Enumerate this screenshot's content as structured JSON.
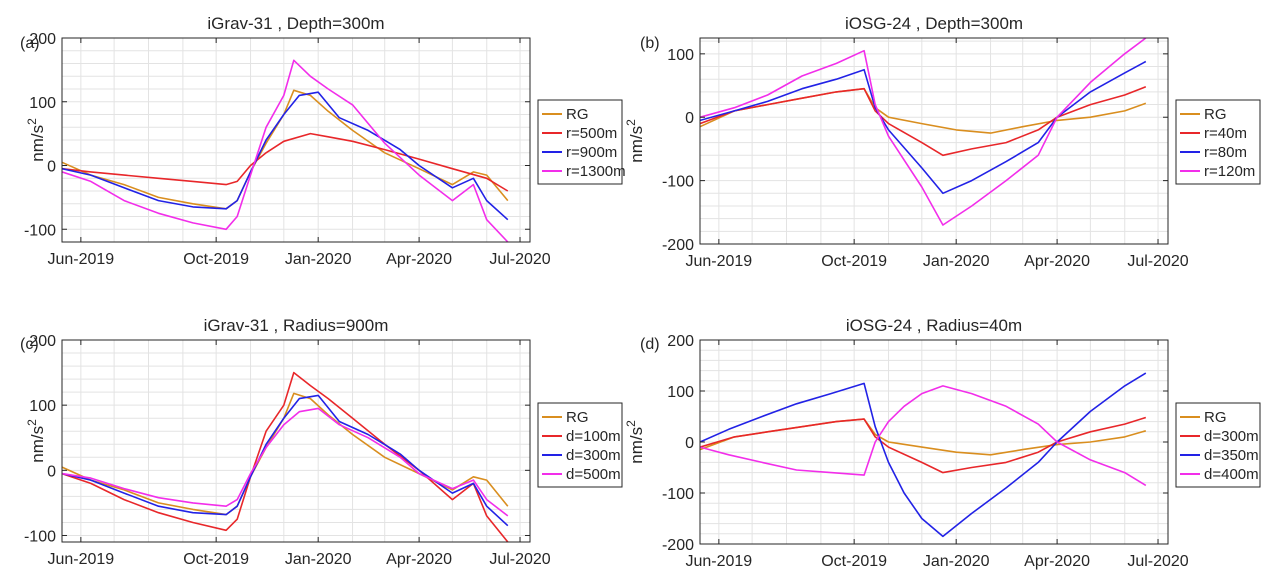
{
  "figure": {
    "colors": {
      "RG": "#D98E1F",
      "red": "#E8272A",
      "blue": "#2222E6",
      "magenta": "#F22EEA",
      "grid": "#E3E3E3",
      "axis": "#262626"
    }
  },
  "chart_data": [
    {
      "type": "line",
      "panel_label": "(a)",
      "title": "iGrav-31 , Depth=300m",
      "xlabel": "",
      "ylabel": "nm/s2",
      "ylabel_base": "nm/s",
      "ylabel_sup": "2",
      "xlim": [
        "2019-05-15",
        "2020-07-10"
      ],
      "xticks": [
        "2019-06-01",
        "2019-10-01",
        "2020-01-01",
        "2020-04-01",
        "2020-07-01"
      ],
      "xticklabels": [
        "Jun-2019",
        "Oct-2019",
        "Jan-2020",
        "Apr-2020",
        "Jul-2020"
      ],
      "ylim": [
        -120,
        200
      ],
      "yticks": [
        -100,
        0,
        100,
        200
      ],
      "yticklabels": [
        "-100",
        "0",
        "100",
        "200"
      ],
      "grid": true,
      "legend_position": "outside-right",
      "series": [
        {
          "name": "RG",
          "color": "#D98E1F",
          "x": [
            "2019-05-15",
            "2019-06-10",
            "2019-07-10",
            "2019-08-10",
            "2019-09-10",
            "2019-10-10",
            "2019-10-20",
            "2019-11-01",
            "2019-11-15",
            "2019-12-01",
            "2019-12-10",
            "2019-12-25",
            "2020-01-10",
            "2020-02-01",
            "2020-03-01",
            "2020-04-01",
            "2020-05-01",
            "2020-05-20",
            "2020-06-01",
            "2020-06-20"
          ],
          "y": [
            5,
            -15,
            -30,
            -50,
            -60,
            -68,
            -55,
            -10,
            35,
            80,
            118,
            110,
            85,
            55,
            20,
            -5,
            -30,
            -10,
            -15,
            -55
          ]
        },
        {
          "name": "r=500m",
          "color": "#E8272A",
          "x": [
            "2019-05-15",
            "2019-06-10",
            "2019-07-10",
            "2019-08-10",
            "2019-09-10",
            "2019-10-10",
            "2019-10-20",
            "2019-11-01",
            "2019-11-15",
            "2019-12-01",
            "2019-12-25",
            "2020-01-10",
            "2020-02-01",
            "2020-03-01",
            "2020-04-01",
            "2020-05-01",
            "2020-06-01",
            "2020-06-20"
          ],
          "y": [
            -5,
            -10,
            -15,
            -20,
            -25,
            -30,
            -25,
            0,
            20,
            38,
            50,
            45,
            38,
            25,
            10,
            -5,
            -20,
            -40
          ]
        },
        {
          "name": "r=900m",
          "color": "#2222E6",
          "x": [
            "2019-05-15",
            "2019-06-10",
            "2019-07-10",
            "2019-08-10",
            "2019-09-10",
            "2019-10-10",
            "2019-10-20",
            "2019-11-01",
            "2019-11-15",
            "2019-12-01",
            "2019-12-15",
            "2020-01-01",
            "2020-01-20",
            "2020-02-15",
            "2020-03-15",
            "2020-04-01",
            "2020-05-01",
            "2020-05-20",
            "2020-06-01",
            "2020-06-20"
          ],
          "y": [
            -5,
            -15,
            -35,
            -55,
            -65,
            -68,
            -55,
            -10,
            40,
            80,
            110,
            115,
            75,
            55,
            25,
            0,
            -35,
            -20,
            -55,
            -85
          ]
        },
        {
          "name": "r=1300m",
          "color": "#F22EEA",
          "x": [
            "2019-05-15",
            "2019-06-10",
            "2019-07-10",
            "2019-08-10",
            "2019-09-10",
            "2019-10-10",
            "2019-10-20",
            "2019-11-01",
            "2019-11-15",
            "2019-12-01",
            "2019-12-10",
            "2019-12-25",
            "2020-01-10",
            "2020-02-01",
            "2020-03-01",
            "2020-04-01",
            "2020-05-01",
            "2020-05-20",
            "2020-06-01",
            "2020-06-20"
          ],
          "y": [
            -10,
            -25,
            -55,
            -75,
            -90,
            -100,
            -80,
            -15,
            60,
            110,
            165,
            140,
            120,
            95,
            35,
            -15,
            -55,
            -30,
            -85,
            -120
          ]
        }
      ]
    },
    {
      "type": "line",
      "panel_label": "(b)",
      "title": "iOSG-24 , Depth=300m",
      "xlabel": "",
      "ylabel": "nm/s2",
      "ylabel_base": "nm/s",
      "ylabel_sup": "2",
      "xlim": [
        "2019-05-15",
        "2020-07-10"
      ],
      "xticks": [
        "2019-06-01",
        "2019-10-01",
        "2020-01-01",
        "2020-04-01",
        "2020-07-01"
      ],
      "xticklabels": [
        "Jun-2019",
        "Oct-2019",
        "Jan-2020",
        "Apr-2020",
        "Jul-2020"
      ],
      "ylim": [
        -200,
        125
      ],
      "yticks": [
        -200,
        -100,
        0,
        100
      ],
      "yticklabels": [
        "-200",
        "-100",
        "0",
        "100"
      ],
      "grid": true,
      "legend_position": "outside-right",
      "series": [
        {
          "name": "RG",
          "color": "#D98E1F",
          "x": [
            "2019-05-15",
            "2019-06-15",
            "2019-07-15",
            "2019-08-15",
            "2019-09-15",
            "2019-10-10",
            "2019-10-20",
            "2019-11-01",
            "2019-12-01",
            "2020-01-01",
            "2020-02-01",
            "2020-03-01",
            "2020-04-01",
            "2020-05-01",
            "2020-06-01",
            "2020-06-20"
          ],
          "y": [
            -15,
            10,
            20,
            30,
            40,
            45,
            15,
            0,
            -10,
            -20,
            -25,
            -15,
            -5,
            0,
            10,
            22
          ]
        },
        {
          "name": "r=40m",
          "color": "#E8272A",
          "x": [
            "2019-05-15",
            "2019-06-15",
            "2019-07-15",
            "2019-08-15",
            "2019-09-15",
            "2019-10-10",
            "2019-10-20",
            "2019-11-01",
            "2019-12-01",
            "2019-12-20",
            "2020-01-15",
            "2020-02-15",
            "2020-03-15",
            "2020-04-01",
            "2020-05-01",
            "2020-06-01",
            "2020-06-20"
          ],
          "y": [
            -10,
            10,
            20,
            30,
            40,
            45,
            10,
            -10,
            -40,
            -60,
            -50,
            -40,
            -20,
            0,
            20,
            35,
            48
          ]
        },
        {
          "name": "r=80m",
          "color": "#2222E6",
          "x": [
            "2019-05-15",
            "2019-06-15",
            "2019-07-15",
            "2019-08-15",
            "2019-09-15",
            "2019-10-10",
            "2019-10-20",
            "2019-11-01",
            "2019-12-01",
            "2019-12-20",
            "2020-01-15",
            "2020-02-15",
            "2020-03-15",
            "2020-04-01",
            "2020-05-01",
            "2020-06-01",
            "2020-06-20"
          ],
          "y": [
            -5,
            10,
            25,
            45,
            60,
            75,
            15,
            -20,
            -80,
            -120,
            -100,
            -70,
            -40,
            0,
            40,
            70,
            88
          ]
        },
        {
          "name": "r=120m",
          "color": "#F22EEA",
          "x": [
            "2019-05-15",
            "2019-06-15",
            "2019-07-15",
            "2019-08-15",
            "2019-09-15",
            "2019-10-10",
            "2019-10-20",
            "2019-11-01",
            "2019-12-01",
            "2019-12-20",
            "2020-01-15",
            "2020-02-15",
            "2020-03-15",
            "2020-04-01",
            "2020-05-01",
            "2020-06-01",
            "2020-06-20"
          ],
          "y": [
            0,
            15,
            35,
            65,
            85,
            105,
            20,
            -30,
            -110,
            -170,
            -140,
            -100,
            -60,
            0,
            55,
            100,
            125
          ]
        }
      ]
    },
    {
      "type": "line",
      "panel_label": "(c)",
      "title": "iGrav-31 , Radius=900m",
      "xlabel": "",
      "ylabel": "nm/s2",
      "ylabel_base": "nm/s",
      "ylabel_sup": "2",
      "xlim": [
        "2019-05-15",
        "2020-07-10"
      ],
      "xticks": [
        "2019-06-01",
        "2019-10-01",
        "2020-01-01",
        "2020-04-01",
        "2020-07-01"
      ],
      "xticklabels": [
        "Jun-2019",
        "Oct-2019",
        "Jan-2020",
        "Apr-2020",
        "Jul-2020"
      ],
      "ylim": [
        -110,
        200
      ],
      "yticks": [
        -100,
        0,
        100,
        200
      ],
      "yticklabels": [
        "-100",
        "0",
        "100",
        "200"
      ],
      "grid": true,
      "legend_position": "outside-right",
      "series": [
        {
          "name": "RG",
          "color": "#D98E1F",
          "x": [
            "2019-05-15",
            "2019-06-10",
            "2019-07-10",
            "2019-08-10",
            "2019-09-10",
            "2019-10-10",
            "2019-10-20",
            "2019-11-01",
            "2019-11-15",
            "2019-12-01",
            "2019-12-10",
            "2019-12-25",
            "2020-01-10",
            "2020-02-01",
            "2020-03-01",
            "2020-04-01",
            "2020-05-01",
            "2020-05-20",
            "2020-06-01",
            "2020-06-20"
          ],
          "y": [
            5,
            -15,
            -30,
            -50,
            -60,
            -68,
            -55,
            -10,
            35,
            80,
            118,
            110,
            85,
            55,
            20,
            -5,
            -30,
            -10,
            -15,
            -55
          ]
        },
        {
          "name": "d=100m",
          "color": "#E8272A",
          "x": [
            "2019-05-15",
            "2019-06-10",
            "2019-07-10",
            "2019-08-10",
            "2019-09-10",
            "2019-10-10",
            "2019-10-20",
            "2019-11-01",
            "2019-11-15",
            "2019-12-01",
            "2019-12-10",
            "2019-12-25",
            "2020-01-10",
            "2020-02-01",
            "2020-03-01",
            "2020-04-01",
            "2020-05-01",
            "2020-05-20",
            "2020-06-01",
            "2020-06-20"
          ],
          "y": [
            -5,
            -20,
            -45,
            -65,
            -80,
            -92,
            -75,
            -10,
            60,
            100,
            150,
            130,
            110,
            80,
            40,
            0,
            -45,
            -20,
            -70,
            -110
          ]
        },
        {
          "name": "d=300m",
          "color": "#2222E6",
          "x": [
            "2019-05-15",
            "2019-06-10",
            "2019-07-10",
            "2019-08-10",
            "2019-09-10",
            "2019-10-10",
            "2019-10-20",
            "2019-11-01",
            "2019-11-15",
            "2019-12-01",
            "2019-12-15",
            "2020-01-01",
            "2020-01-20",
            "2020-02-15",
            "2020-03-15",
            "2020-04-01",
            "2020-05-01",
            "2020-05-20",
            "2020-06-01",
            "2020-06-20"
          ],
          "y": [
            -5,
            -15,
            -35,
            -55,
            -65,
            -68,
            -55,
            -10,
            40,
            80,
            110,
            115,
            75,
            55,
            25,
            0,
            -35,
            -20,
            -55,
            -85
          ]
        },
        {
          "name": "d=500m",
          "color": "#F22EEA",
          "x": [
            "2019-05-15",
            "2019-06-10",
            "2019-07-10",
            "2019-08-10",
            "2019-09-10",
            "2019-10-10",
            "2019-10-20",
            "2019-11-01",
            "2019-11-15",
            "2019-12-01",
            "2019-12-15",
            "2020-01-01",
            "2020-01-20",
            "2020-02-15",
            "2020-03-15",
            "2020-04-01",
            "2020-05-01",
            "2020-05-20",
            "2020-06-01",
            "2020-06-20"
          ],
          "y": [
            -5,
            -12,
            -28,
            -42,
            -50,
            -55,
            -45,
            -5,
            35,
            70,
            90,
            95,
            70,
            50,
            20,
            -5,
            -28,
            -15,
            -45,
            -70
          ]
        }
      ]
    },
    {
      "type": "line",
      "panel_label": "(d)",
      "title": "iOSG-24 , Radius=40m",
      "xlabel": "",
      "ylabel": "nm/s2",
      "ylabel_base": "nm/s",
      "ylabel_sup": "2",
      "xlim": [
        "2019-05-15",
        "2020-07-10"
      ],
      "xticks": [
        "2019-06-01",
        "2019-10-01",
        "2020-01-01",
        "2020-04-01",
        "2020-07-01"
      ],
      "xticklabels": [
        "Jun-2019",
        "Oct-2019",
        "Jan-2020",
        "Apr-2020",
        "Jul-2020"
      ],
      "ylim": [
        -200,
        200
      ],
      "yticks": [
        -200,
        -100,
        0,
        100,
        200
      ],
      "yticklabels": [
        "-200",
        "-100",
        "0",
        "100",
        "200"
      ],
      "grid": true,
      "legend_position": "outside-right",
      "series": [
        {
          "name": "RG",
          "color": "#D98E1F",
          "x": [
            "2019-05-15",
            "2019-06-15",
            "2019-07-15",
            "2019-08-15",
            "2019-09-15",
            "2019-10-10",
            "2019-10-20",
            "2019-11-01",
            "2019-12-01",
            "2020-01-01",
            "2020-02-01",
            "2020-03-01",
            "2020-04-01",
            "2020-05-01",
            "2020-06-01",
            "2020-06-20"
          ],
          "y": [
            -15,
            10,
            20,
            30,
            40,
            45,
            15,
            0,
            -10,
            -20,
            -25,
            -15,
            -5,
            0,
            10,
            22
          ]
        },
        {
          "name": "d=300m",
          "color": "#E8272A",
          "x": [
            "2019-05-15",
            "2019-06-15",
            "2019-07-15",
            "2019-08-15",
            "2019-09-15",
            "2019-10-10",
            "2019-10-20",
            "2019-11-01",
            "2019-12-01",
            "2019-12-20",
            "2020-01-15",
            "2020-02-15",
            "2020-03-15",
            "2020-04-01",
            "2020-05-01",
            "2020-06-01",
            "2020-06-20"
          ],
          "y": [
            -10,
            10,
            20,
            30,
            40,
            45,
            10,
            -10,
            -40,
            -60,
            -50,
            -40,
            -20,
            0,
            20,
            35,
            48
          ]
        },
        {
          "name": "d=350m",
          "color": "#2222E6",
          "x": [
            "2019-05-15",
            "2019-06-10",
            "2019-07-10",
            "2019-08-10",
            "2019-09-10",
            "2019-10-10",
            "2019-10-20",
            "2019-11-01",
            "2019-11-15",
            "2019-12-01",
            "2019-12-20",
            "2020-01-15",
            "2020-02-15",
            "2020-03-15",
            "2020-04-01",
            "2020-05-01",
            "2020-06-01",
            "2020-06-20"
          ],
          "y": [
            0,
            25,
            50,
            75,
            95,
            115,
            30,
            -40,
            -100,
            -150,
            -185,
            -140,
            -90,
            -40,
            0,
            60,
            110,
            135
          ]
        },
        {
          "name": "d=400m",
          "color": "#F22EEA",
          "x": [
            "2019-05-15",
            "2019-06-10",
            "2019-07-10",
            "2019-08-10",
            "2019-09-10",
            "2019-10-10",
            "2019-10-20",
            "2019-11-01",
            "2019-11-15",
            "2019-12-01",
            "2019-12-20",
            "2020-01-15",
            "2020-02-15",
            "2020-03-15",
            "2020-04-01",
            "2020-05-01",
            "2020-06-01",
            "2020-06-20"
          ],
          "y": [
            -10,
            -25,
            -40,
            -55,
            -60,
            -65,
            0,
            40,
            70,
            95,
            110,
            95,
            70,
            35,
            0,
            -35,
            -60,
            -85
          ]
        }
      ]
    }
  ]
}
